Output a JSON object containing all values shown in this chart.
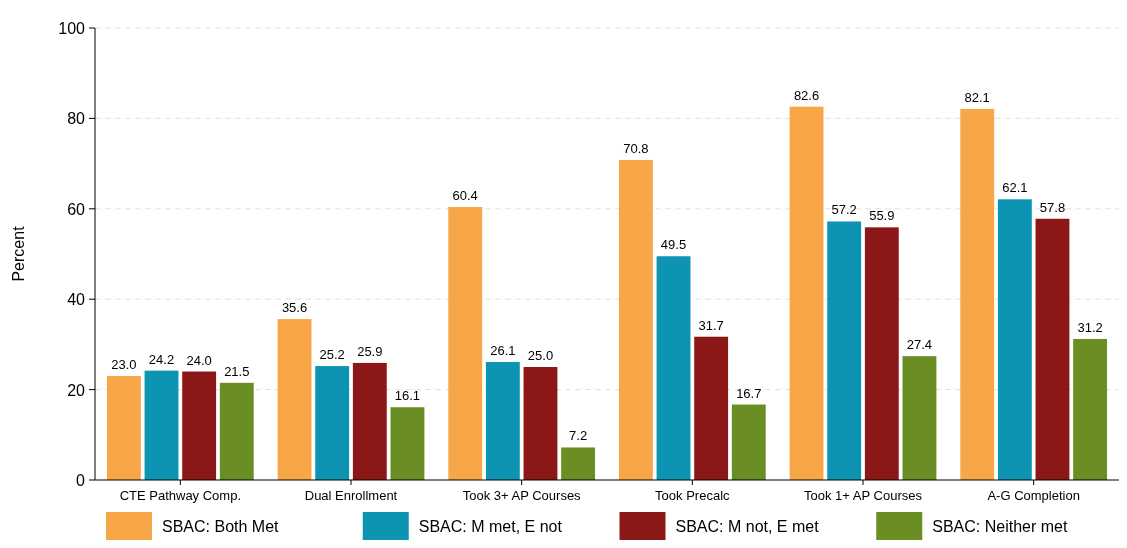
{
  "chart_data": {
    "type": "bar",
    "ylabel": "Percent",
    "categories": [
      "CTE Pathway Comp.",
      "Dual Enrollment",
      "Took 3+ AP Courses",
      "Took Precalc",
      "Took 1+ AP Courses",
      "A-G Completion"
    ],
    "series": [
      {
        "name": "SBAC: Both Met",
        "color": "#f8a748",
        "values": [
          23.0,
          35.6,
          60.4,
          70.8,
          82.6,
          82.1
        ],
        "value_labels": [
          "23.0",
          "35.6",
          "60.4",
          "70.8",
          "82.6",
          "82.1"
        ]
      },
      {
        "name": "SBAC: M met, E not",
        "color": "#0d94b2",
        "values": [
          24.2,
          25.2,
          26.1,
          49.5,
          57.2,
          62.1
        ],
        "value_labels": [
          "24.2",
          "25.2",
          "26.1",
          "49.5",
          "57.2",
          "62.1"
        ]
      },
      {
        "name": "SBAC: M not, E met",
        "color": "#8c1717",
        "values": [
          24.0,
          25.9,
          25.0,
          31.7,
          55.9,
          57.8
        ],
        "value_labels": [
          "24.0",
          "25.9",
          "25.0",
          "31.7",
          "55.9",
          "57.8"
        ]
      },
      {
        "name": "SBAC: Neither met",
        "color": "#6a8e23",
        "values": [
          21.5,
          16.1,
          7.2,
          16.7,
          27.4,
          31.2
        ],
        "value_labels": [
          "21.5",
          "16.1",
          "7.2",
          "16.7",
          "27.4",
          "31.2"
        ]
      }
    ],
    "ylim": [
      0,
      100
    ],
    "yticks": [
      0,
      20,
      40,
      60,
      80,
      100
    ],
    "grid": "y",
    "legend": "bottom"
  }
}
